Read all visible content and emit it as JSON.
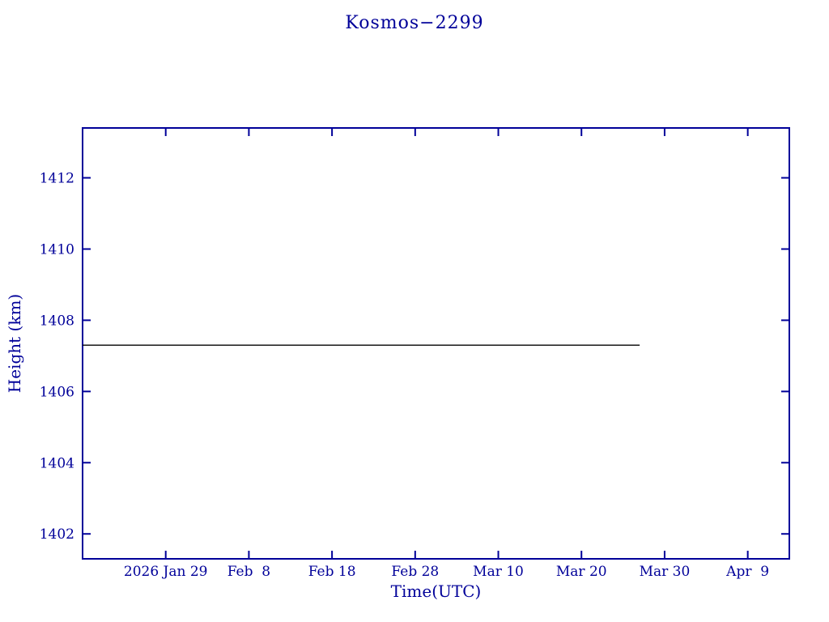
{
  "chart_data": {
    "type": "line",
    "title": "Kosmos−2299",
    "xlabel": "Time(UTC)",
    "ylabel": "Height (km)",
    "x_axis_encoding": "days, 0 = 2026 Jan 19",
    "xlim": [
      0,
      85
    ],
    "ylim": [
      1401.3,
      1413.4
    ],
    "xticks": [
      {
        "pos": 10,
        "label": "2026 Jan 29"
      },
      {
        "pos": 20,
        "label": "Feb  8"
      },
      {
        "pos": 30,
        "label": "Feb 18"
      },
      {
        "pos": 40,
        "label": "Feb 28"
      },
      {
        "pos": 50,
        "label": "Mar 10"
      },
      {
        "pos": 60,
        "label": "Mar 20"
      },
      {
        "pos": 70,
        "label": "Mar 30"
      },
      {
        "pos": 80,
        "label": "Apr  9"
      }
    ],
    "yticks": [
      1402,
      1404,
      1406,
      1408,
      1410,
      1412
    ],
    "grid": false,
    "legend": null,
    "axis_color": "#000099",
    "series": [
      {
        "name": "height",
        "color": "#000000",
        "points": [
          [
            0,
            1407.3
          ],
          [
            67,
            1407.3
          ]
        ]
      }
    ]
  }
}
